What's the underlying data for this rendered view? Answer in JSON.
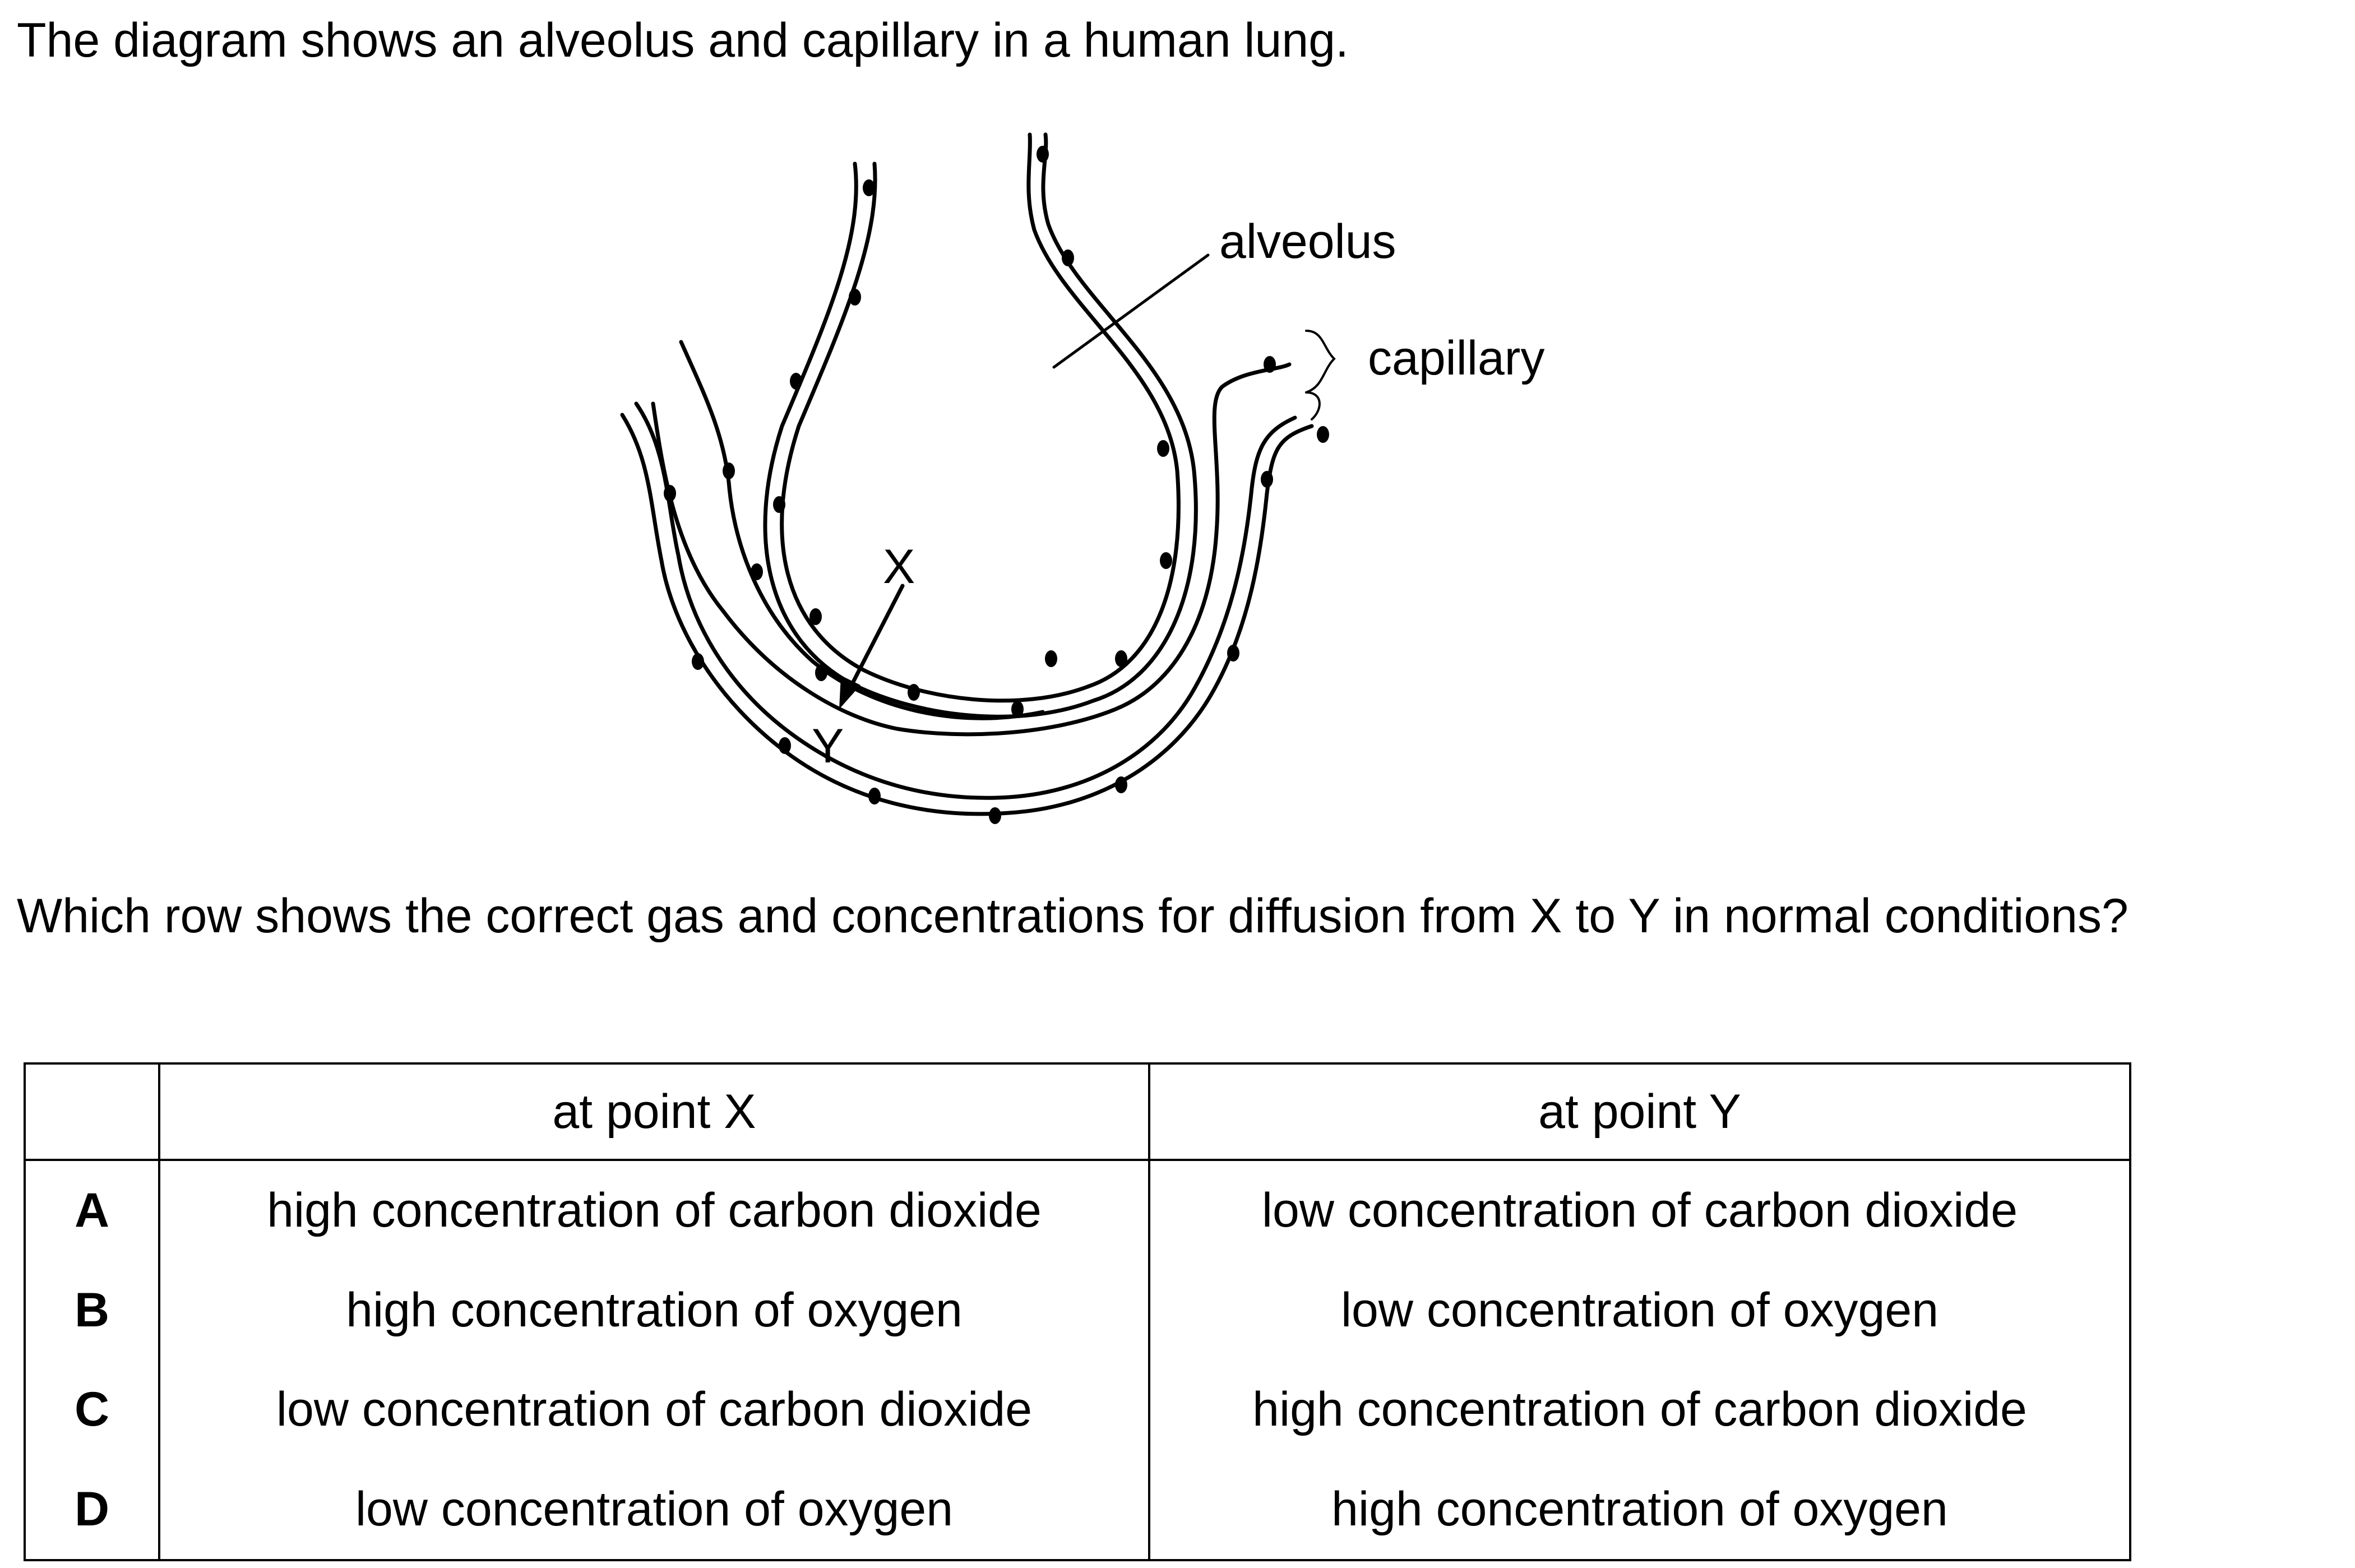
{
  "intro": "The diagram shows an alveolus and capillary in a human lung.",
  "diagram": {
    "labels": {
      "alveolus": "alveolus",
      "capillary": "capillary",
      "point_x": "X",
      "point_y": "Y"
    }
  },
  "question": "Which row shows the correct gas and concentrations for diffusion from X to Y in normal conditions?",
  "table": {
    "headers": [
      "",
      "at point X",
      "at point Y"
    ],
    "rows": [
      {
        "key": "A",
        "x": "high concentration of carbon dioxide",
        "y": "low concentration of carbon dioxide"
      },
      {
        "key": "B",
        "x": "high concentration of oxygen",
        "y": "low concentration of oxygen"
      },
      {
        "key": "C",
        "x": "low concentration of carbon dioxide",
        "y": "high concentration of carbon dioxide"
      },
      {
        "key": "D",
        "x": "low concentration of oxygen",
        "y": "high concentration of oxygen"
      }
    ]
  }
}
